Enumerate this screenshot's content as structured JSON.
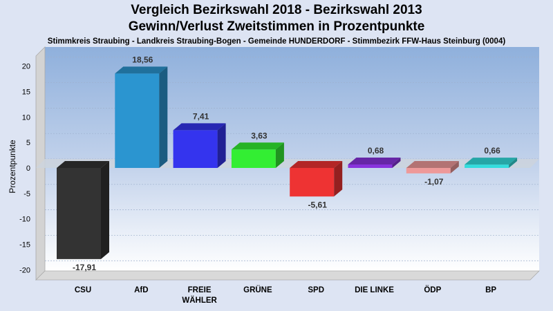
{
  "title_line1": "Vergleich Bezirkswahl 2018 - Bezirkswahl 2013",
  "title_line2": "Gewinn/Verlust Zweitstimmen in Prozentpunkte",
  "subtitle": "Stimmkreis Straubing - Landkreis Straubing-Bogen - Gemeinde HUNDERDORF - Stimmbezirk FFW-Haus Steinburg (0004)",
  "chart_data": {
    "type": "bar",
    "title": "Vergleich Bezirkswahl 2018 - Bezirkswahl 2013 / Gewinn/Verlust Zweitstimmen in Prozentpunkte",
    "ylabel": "Prozentpunkte",
    "xlabel": "",
    "ylim": [
      -22,
      22
    ],
    "yticks": [
      20,
      15,
      10,
      5,
      0,
      -5,
      -10,
      -15,
      -20
    ],
    "grid": true,
    "categories": [
      "CSU",
      "AfD",
      "FREIE WÄHLER",
      "GRÜNE",
      "SPD",
      "DIE LINKE",
      "ÖDP",
      "BP"
    ],
    "category_lines": [
      [
        "CSU"
      ],
      [
        "AfD"
      ],
      [
        "FREIE",
        "WÄHLER"
      ],
      [
        "GRÜNE"
      ],
      [
        "SPD"
      ],
      [
        "DIE LINKE"
      ],
      [
        "ÖDP"
      ],
      [
        "BP"
      ]
    ],
    "values": [
      -17.91,
      18.56,
      7.41,
      3.63,
      -5.61,
      0.68,
      -1.07,
      0.66
    ],
    "value_labels": [
      "-17,91",
      "18,56",
      "7,41",
      "3,63",
      "-5,61",
      "0,68",
      "-1,07",
      "0,66"
    ],
    "colors": [
      "#333333",
      "#2b95d0",
      "#3434ee",
      "#33ee33",
      "#ee3333",
      "#8833dd",
      "#ee9999",
      "#33dddd"
    ]
  }
}
